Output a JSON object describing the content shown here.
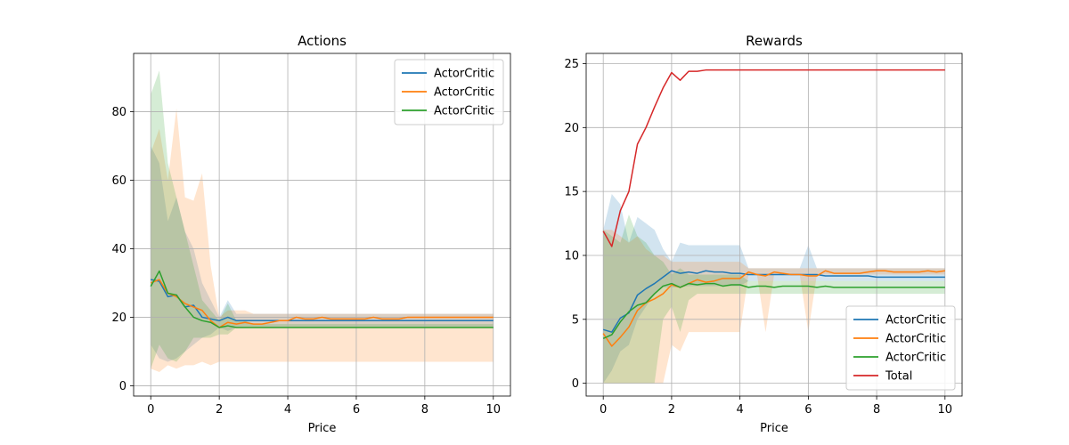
{
  "chart_data": [
    {
      "type": "line",
      "title": "Actions",
      "xlabel": "Price",
      "ylabel": "",
      "xlim": [
        -0.5,
        10.5
      ],
      "ylim": [
        -3,
        97
      ],
      "xticks": [
        0,
        2,
        4,
        6,
        8,
        10
      ],
      "yticks": [
        0,
        20,
        40,
        60,
        80
      ],
      "grid": true,
      "legend": "top-right",
      "x": [
        0,
        0.25,
        0.5,
        0.75,
        1,
        1.25,
        1.5,
        1.75,
        2,
        2.25,
        2.5,
        2.75,
        3,
        3.25,
        3.5,
        3.75,
        4,
        4.25,
        4.5,
        4.75,
        5,
        5.25,
        5.5,
        5.75,
        6,
        6.25,
        6.5,
        6.75,
        7,
        7.25,
        7.5,
        7.75,
        8,
        8.25,
        8.5,
        8.75,
        9,
        9.25,
        9.5,
        9.75,
        10
      ],
      "series": [
        {
          "name": "ActorCritic",
          "color": "#1f77b4",
          "values": [
            31,
            30.5,
            26,
            26.5,
            23,
            23.5,
            20,
            19.5,
            19,
            20,
            19,
            19,
            19,
            19,
            19,
            19,
            19,
            19,
            19,
            19,
            19,
            19,
            19,
            19,
            19,
            19,
            19,
            19,
            19,
            19,
            19,
            19,
            19,
            19,
            19,
            19,
            19,
            19,
            19,
            19,
            19
          ],
          "lower": [
            12,
            8,
            7,
            8,
            10,
            12,
            14,
            15,
            17,
            16,
            17,
            17,
            17,
            17,
            17,
            17,
            17,
            17,
            17,
            17,
            17,
            17,
            17,
            17,
            17,
            17,
            17,
            17,
            17,
            17,
            17,
            17,
            17,
            17,
            17,
            17,
            17,
            17,
            17,
            17,
            17
          ],
          "upper": [
            70,
            65,
            48,
            55,
            45,
            40,
            30,
            25,
            20,
            25,
            21,
            21,
            21,
            21,
            21,
            21,
            21,
            21,
            21,
            21,
            21,
            21,
            21,
            21,
            21,
            21,
            21,
            21,
            21,
            21,
            21,
            21,
            21,
            21,
            21,
            21,
            21,
            21,
            21,
            21,
            21
          ]
        },
        {
          "name": "ActorCritic",
          "color": "#ff7f0e",
          "values": [
            30,
            31,
            27,
            26,
            24,
            23,
            22,
            19,
            17,
            18.5,
            18,
            18.5,
            18,
            18,
            18.5,
            19,
            19,
            20,
            19.5,
            19.5,
            20,
            19.5,
            19.5,
            19.5,
            19.5,
            19.5,
            20,
            19.5,
            19.5,
            19.5,
            20,
            20,
            20,
            20,
            20,
            20,
            20,
            20,
            20,
            20,
            20
          ],
          "lower": [
            5,
            4,
            6,
            5,
            6,
            6,
            7,
            6,
            7,
            7,
            7,
            7,
            7,
            7,
            7,
            7,
            7,
            7,
            7,
            7,
            7,
            7,
            7,
            7,
            7,
            7,
            7,
            7,
            7,
            7,
            7,
            7,
            7,
            7,
            7,
            7,
            7,
            7,
            7,
            7,
            7
          ],
          "upper": [
            68,
            75,
            60,
            81,
            55,
            54,
            62,
            35,
            20,
            22,
            22,
            22,
            21,
            21,
            21,
            21,
            21,
            21,
            21,
            21,
            21,
            21,
            21,
            21,
            21,
            21,
            21,
            21,
            21,
            21,
            21,
            21,
            21,
            21,
            21,
            21,
            21,
            21,
            21,
            21,
            21
          ]
        },
        {
          "name": "ActorCritic",
          "color": "#2ca02c",
          "values": [
            29,
            33.5,
            27,
            26.5,
            23,
            20,
            19,
            18.5,
            17,
            17.5,
            17,
            17,
            17,
            17,
            17,
            17,
            17,
            17,
            17,
            17,
            17,
            17,
            17,
            17,
            17,
            17,
            17,
            17,
            17,
            17,
            17,
            17,
            17,
            17,
            17,
            17,
            17,
            17,
            17,
            17,
            17
          ],
          "lower": [
            5,
            12,
            8,
            7,
            10,
            14,
            14,
            14,
            15,
            15,
            17,
            17,
            17,
            17,
            17,
            17,
            17,
            17,
            17,
            17,
            17,
            17,
            17,
            17,
            17,
            17,
            17,
            17,
            17,
            17,
            17,
            17,
            17,
            17,
            17,
            17,
            17,
            17,
            17,
            17,
            17
          ],
          "upper": [
            85,
            92,
            65,
            55,
            45,
            35,
            25,
            22,
            19,
            24,
            19,
            19,
            18,
            18,
            18,
            18,
            18,
            18,
            18,
            18,
            18,
            18,
            18,
            18,
            18,
            18,
            18,
            18,
            18,
            18,
            18,
            18,
            18,
            18,
            18,
            18,
            18,
            18,
            18,
            18,
            18
          ]
        }
      ]
    },
    {
      "type": "line",
      "title": "Rewards",
      "xlabel": "Price",
      "ylabel": "",
      "xlim": [
        -0.5,
        10.5
      ],
      "ylim": [
        -1,
        25.8
      ],
      "xticks": [
        0,
        2,
        4,
        6,
        8,
        10
      ],
      "yticks": [
        0,
        5,
        10,
        15,
        20,
        25
      ],
      "grid": true,
      "legend": "bottom-right",
      "x": [
        0,
        0.25,
        0.5,
        0.75,
        1,
        1.25,
        1.5,
        1.75,
        2,
        2.25,
        2.5,
        2.75,
        3,
        3.25,
        3.5,
        3.75,
        4,
        4.25,
        4.5,
        4.75,
        5,
        5.25,
        5.5,
        5.75,
        6,
        6.25,
        6.5,
        6.75,
        7,
        7.25,
        7.5,
        7.75,
        8,
        8.25,
        8.5,
        8.75,
        9,
        9.25,
        9.5,
        9.75,
        10
      ],
      "series": [
        {
          "name": "ActorCritic",
          "color": "#1f77b4",
          "values": [
            4.2,
            4,
            5.1,
            5.5,
            6.9,
            7.4,
            7.8,
            8.3,
            8.8,
            8.6,
            8.7,
            8.6,
            8.8,
            8.7,
            8.7,
            8.6,
            8.6,
            8.5,
            8.5,
            8.5,
            8.5,
            8.5,
            8.5,
            8.5,
            8.5,
            8.5,
            8.4,
            8.4,
            8.4,
            8.4,
            8.4,
            8.4,
            8.3,
            8.3,
            8.3,
            8.3,
            8.3,
            8.3,
            8.3,
            8.3,
            8.3
          ],
          "lower": [
            0,
            1,
            2.5,
            3,
            5,
            6,
            7,
            7.5,
            7.5,
            7.5,
            7.6,
            7.6,
            7.6,
            7.6,
            7.6,
            7.6,
            7.6,
            8,
            8,
            8,
            8,
            8,
            8,
            8,
            8,
            8,
            8,
            8,
            8,
            8,
            8,
            8,
            8,
            8,
            8,
            8,
            8,
            8,
            8,
            8,
            8
          ],
          "upper": [
            12,
            14.8,
            14,
            11,
            13,
            12.5,
            12,
            10.5,
            9.5,
            11,
            10.8,
            10.8,
            10.8,
            10.8,
            10.8,
            10.8,
            10.8,
            9,
            9,
            9,
            9,
            9,
            9,
            9,
            10.8,
            9,
            9,
            9,
            9,
            9,
            9,
            9,
            9,
            9,
            9,
            9,
            9,
            9,
            9,
            9,
            9
          ]
        },
        {
          "name": "ActorCritic",
          "color": "#ff7f0e",
          "values": [
            3.9,
            2.9,
            3.6,
            4.4,
            5.7,
            6.3,
            6.6,
            7,
            7.7,
            7.5,
            7.8,
            8.1,
            7.9,
            8,
            8.2,
            8.2,
            8.2,
            8.7,
            8.5,
            8.4,
            8.7,
            8.6,
            8.5,
            8.5,
            8.4,
            8.4,
            8.8,
            8.6,
            8.6,
            8.6,
            8.6,
            8.7,
            8.8,
            8.8,
            8.7,
            8.7,
            8.7,
            8.7,
            8.8,
            8.7,
            8.8
          ],
          "lower": [
            0,
            0,
            0,
            0,
            0,
            0,
            0,
            0,
            3,
            2.5,
            4,
            4,
            4,
            4,
            4,
            4,
            4,
            8.5,
            8.5,
            4,
            8.5,
            8.5,
            8.5,
            8.5,
            4,
            8.5,
            8.5,
            8.5,
            8.5,
            8.5,
            8.5,
            8.5,
            8.5,
            8.5,
            8.5,
            8.5,
            8.5,
            8.5,
            8.5,
            8.5,
            8.5
          ],
          "upper": [
            12,
            12,
            11.5,
            11,
            11.5,
            10.5,
            10,
            10,
            9.5,
            9.5,
            9.5,
            9.5,
            9.5,
            9.5,
            9.5,
            9.5,
            9.5,
            9,
            9,
            9,
            9,
            9,
            9,
            9,
            9,
            9,
            9,
            9,
            9,
            9,
            9,
            9,
            9,
            9,
            9,
            9,
            9,
            9,
            9,
            9,
            9
          ]
        },
        {
          "name": "ActorCritic",
          "color": "#2ca02c",
          "values": [
            3.5,
            3.8,
            4.8,
            5.6,
            6.1,
            6.3,
            7,
            7.6,
            7.8,
            7.5,
            7.8,
            7.7,
            7.8,
            7.8,
            7.6,
            7.7,
            7.7,
            7.5,
            7.6,
            7.6,
            7.5,
            7.6,
            7.6,
            7.6,
            7.6,
            7.5,
            7.6,
            7.5,
            7.5,
            7.5,
            7.5,
            7.5,
            7.5,
            7.5,
            7.5,
            7.5,
            7.5,
            7.5,
            7.5,
            7.5,
            7.5
          ],
          "lower": [
            0,
            0,
            0,
            0,
            0,
            0,
            0,
            5,
            6,
            4,
            6.5,
            7,
            7,
            7,
            7,
            7,
            7,
            7,
            7,
            7,
            7,
            7,
            7,
            7,
            7,
            7,
            7,
            7,
            7,
            7,
            7,
            7,
            7,
            7,
            7,
            7,
            7,
            7,
            7,
            7,
            7
          ],
          "upper": [
            12,
            11.5,
            11,
            13.2,
            11.5,
            11,
            10,
            9.5,
            8.5,
            9,
            8.5,
            8.5,
            8.5,
            8.5,
            8.5,
            8.5,
            8.5,
            8,
            8,
            8,
            8,
            8,
            8,
            8,
            8,
            8,
            8,
            8,
            8,
            8,
            8,
            8,
            8,
            8,
            8,
            8,
            8,
            8,
            8,
            8,
            8
          ]
        },
        {
          "name": "Total",
          "color": "#d62728",
          "values": [
            11.9,
            10.7,
            13.5,
            15,
            18.7,
            20,
            21.6,
            23.1,
            24.3,
            23.7,
            24.4,
            24.4,
            24.5,
            24.5,
            24.5,
            24.5,
            24.5,
            24.5,
            24.5,
            24.5,
            24.5,
            24.5,
            24.5,
            24.5,
            24.5,
            24.5,
            24.5,
            24.5,
            24.5,
            24.5,
            24.5,
            24.5,
            24.5,
            24.5,
            24.5,
            24.5,
            24.5,
            24.5,
            24.5,
            24.5,
            24.5
          ]
        }
      ]
    }
  ]
}
